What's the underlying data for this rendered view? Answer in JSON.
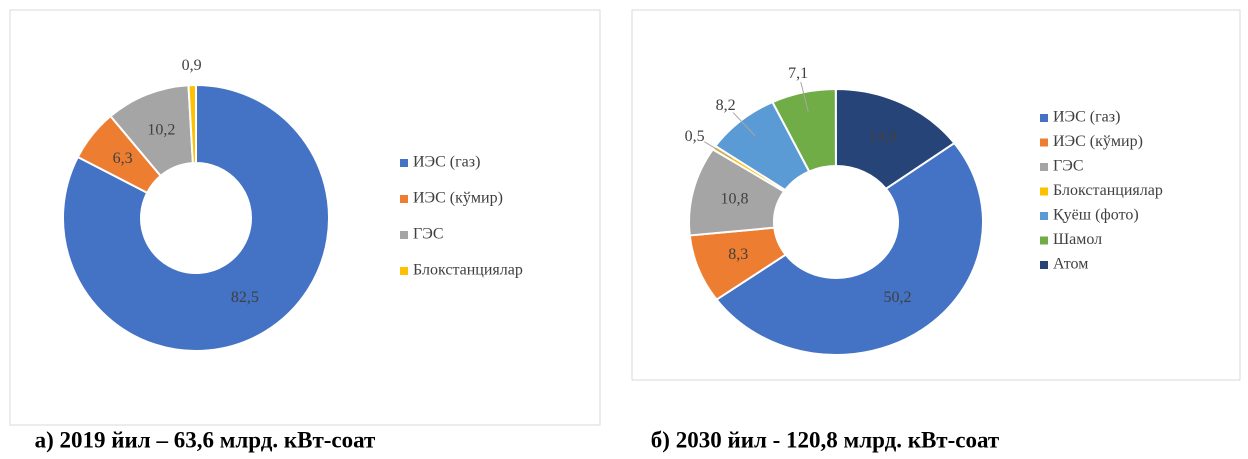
{
  "chart_data": [
    {
      "type": "donut",
      "title": "а) 2019 йил – 63,6 млрд. кВт-соат",
      "categories": [
        "ИЭС (газ)",
        "ИЭС (кўмир)",
        "ГЭС",
        "Блокстанциялар"
      ],
      "values": [
        82.5,
        6.3,
        10.2,
        0.9
      ],
      "value_labels": [
        "82,5",
        "6,3",
        "10,2",
        "0,9"
      ],
      "colors": [
        "#4472c4",
        "#ed7d31",
        "#a5a5a5",
        "#ffc000"
      ]
    },
    {
      "type": "donut",
      "title": "б) 2030 йил - 120,8 млрд. кВт-соат",
      "categories": [
        "ИЭС (газ)",
        "ИЭС (кўмир)",
        "ГЭС",
        "Блокстанциялар",
        "Қуёш (фото)",
        "Шамол",
        "Атом"
      ],
      "values": [
        50.2,
        8.3,
        10.8,
        0.5,
        8.2,
        7.1,
        14.9
      ],
      "value_labels": [
        "50,2",
        "8,3",
        "10,8",
        "0,5",
        "8,2",
        "7,1",
        "14,9"
      ],
      "colors": [
        "#4472c4",
        "#ed7d31",
        "#a5a5a5",
        "#ffc000",
        "#5b9bd5",
        "#70ad47",
        "#264478"
      ]
    }
  ]
}
